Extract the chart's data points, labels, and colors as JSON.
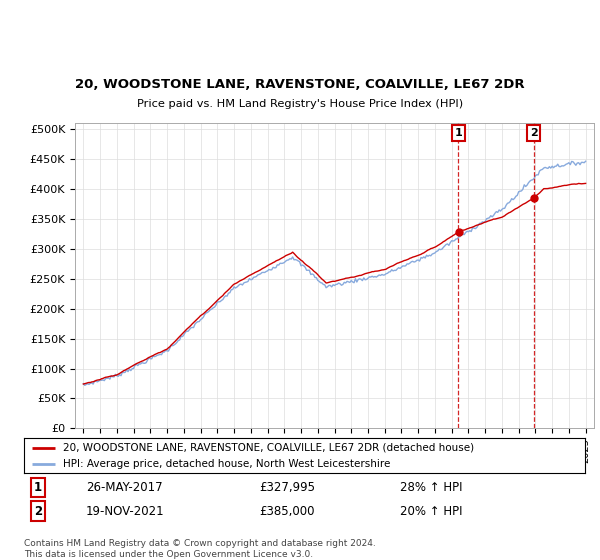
{
  "title1": "20, WOODSTONE LANE, RAVENSTONE, COALVILLE, LE67 2DR",
  "title2": "Price paid vs. HM Land Registry's House Price Index (HPI)",
  "ylabel_ticks": [
    "£0",
    "£50K",
    "£100K",
    "£150K",
    "£200K",
    "£250K",
    "£300K",
    "£350K",
    "£400K",
    "£450K",
    "£500K"
  ],
  "ytick_vals": [
    0,
    50000,
    100000,
    150000,
    200000,
    250000,
    300000,
    350000,
    400000,
    450000,
    500000
  ],
  "xlim": [
    1994.5,
    2025.5
  ],
  "ylim": [
    0,
    510000
  ],
  "hpi_color": "#88aadd",
  "price_color": "#cc0000",
  "sale1_date": 2017.39,
  "sale1_price": 327995,
  "sale2_date": 2021.89,
  "sale2_price": 385000,
  "legend_line1": "20, WOODSTONE LANE, RAVENSTONE, COALVILLE, LE67 2DR (detached house)",
  "legend_line2": "HPI: Average price, detached house, North West Leicestershire",
  "table_row1": [
    "1",
    "26-MAY-2017",
    "£327,995",
    "28% ↑ HPI"
  ],
  "table_row2": [
    "2",
    "19-NOV-2021",
    "£385,000",
    "20% ↑ HPI"
  ],
  "footnote": "Contains HM Land Registry data © Crown copyright and database right 2024.\nThis data is licensed under the Open Government Licence v3.0.",
  "background_color": "#ffffff",
  "grid_color": "#dddddd"
}
